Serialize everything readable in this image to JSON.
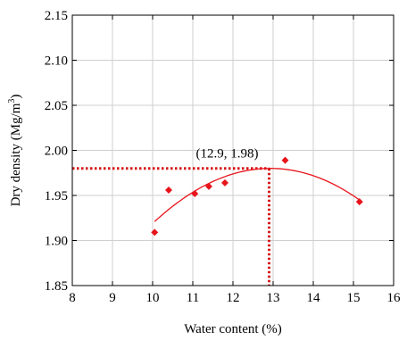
{
  "chart_data": {
    "type": "scatter",
    "xlabel": "Water content (%)",
    "ylabel": "Dry density (Mg/m³)",
    "ylabel_parts": {
      "main": "Dry density (Mg/m",
      "sup": "3",
      "close": ")"
    },
    "xlim": [
      8,
      16
    ],
    "ylim": [
      1.85,
      2.15
    ],
    "xticks": [
      8,
      9,
      10,
      11,
      12,
      13,
      14,
      15,
      16
    ],
    "yticks": [
      1.85,
      1.9,
      1.95,
      2.0,
      2.05,
      2.1,
      2.15
    ],
    "xtick_labels": [
      "8",
      "9",
      "10",
      "11",
      "12",
      "13",
      "14",
      "15",
      "16"
    ],
    "ytick_labels": [
      "1.85",
      "1.90",
      "1.95",
      "2.00",
      "2.05",
      "2.10",
      "2.15"
    ],
    "grid": true,
    "series": [
      {
        "marker": "diamond",
        "color": "#e8141c",
        "x": [
          10.05,
          10.4,
          11.05,
          11.4,
          11.8,
          13.3,
          15.15
        ],
        "y": [
          1.909,
          1.956,
          1.952,
          1.96,
          1.964,
          1.989,
          1.943
        ]
      }
    ],
    "fit_curve": {
      "type": "quadratic",
      "color": "#e8141c",
      "x_range": [
        10.05,
        15.15
      ],
      "points": [
        [
          10.05,
          1.921
        ],
        [
          12.9,
          1.98
        ],
        [
          15.15,
          1.945
        ]
      ]
    },
    "annotation": {
      "text": "(12.9, 1.98)",
      "x": 12.9,
      "y": 1.98,
      "guide_color": "#d61a1a"
    }
  }
}
